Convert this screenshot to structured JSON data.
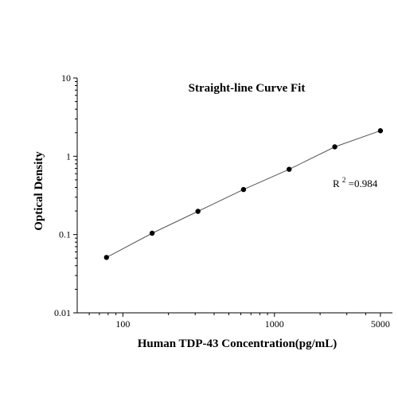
{
  "chart_data": {
    "type": "scatter",
    "title": "Straight-line Curve Fit",
    "xlabel": "Human TDP-43 Concentration(pg/mL)",
    "ylabel": "Optical Density",
    "xscale": "log",
    "yscale": "log",
    "xlim": [
      50,
      6000
    ],
    "ylim": [
      0.01,
      10
    ],
    "x_ticks": [
      100,
      1000,
      5000
    ],
    "x_tick_labels": [
      "100",
      "1000",
      "5000"
    ],
    "y_ticks": [
      0.01,
      0.1,
      1,
      10
    ],
    "y_tick_labels": [
      "0.01",
      "0.1",
      "1",
      "10"
    ],
    "grid": false,
    "fit_line": true,
    "annotation": {
      "base": "R",
      "superscript": "2",
      "rest": "=0.984",
      "r_squared": 0.984
    },
    "series": [
      {
        "x": [
          78,
          156,
          313,
          625,
          1250,
          2500,
          5000
        ],
        "y": [
          0.051,
          0.104,
          0.198,
          0.376,
          0.682,
          1.32,
          2.12
        ]
      }
    ]
  }
}
